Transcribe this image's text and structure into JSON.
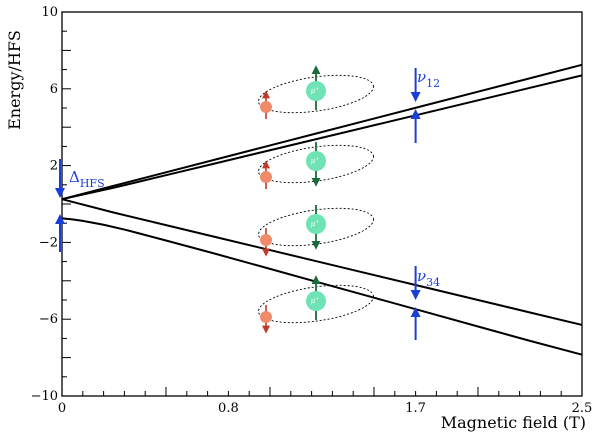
{
  "chart_data": {
    "type": "line",
    "xlabel": "Magnetic field (T)",
    "ylabel": "Energy/HFS",
    "xlim": [
      0,
      2.5
    ],
    "ylim": [
      -10,
      10
    ],
    "x_ticks": [
      {
        "value": 0,
        "label": "0"
      },
      {
        "value": 0.8,
        "label": "0.8"
      },
      {
        "value": 1.7,
        "label": "1.7"
      },
      {
        "value": 2.5,
        "label": "2.5"
      }
    ],
    "y_ticks": [
      {
        "value": -10,
        "label": "−10"
      },
      {
        "value": -6,
        "label": "−6"
      },
      {
        "value": -2,
        "label": "−2"
      },
      {
        "value": 2,
        "label": "2"
      },
      {
        "value": 6,
        "label": "6"
      },
      {
        "value": 10,
        "label": "10"
      }
    ],
    "series": [
      {
        "x": [
          0,
          0.25,
          0.5,
          0.75,
          1.0,
          1.25,
          1.5,
          1.75,
          2.0,
          2.25,
          2.5
        ],
        "y": [
          0.25,
          0.95,
          1.65,
          2.35,
          3.05,
          3.75,
          4.45,
          5.15,
          5.85,
          6.55,
          7.25
        ],
        "color": "#000000"
      },
      {
        "x": [
          0,
          0.25,
          0.5,
          0.75,
          1.0,
          1.25,
          1.5,
          1.75,
          2.0,
          2.25,
          2.5
        ],
        "y": [
          0.25,
          0.85,
          1.5,
          2.15,
          2.8,
          3.45,
          4.1,
          4.75,
          5.4,
          6.05,
          6.7
        ],
        "color": "#000000"
      },
      {
        "x": [
          0,
          0.25,
          0.5,
          0.75,
          1.0,
          1.25,
          1.5,
          1.75,
          2.0,
          2.25,
          2.5
        ],
        "y": [
          0.25,
          -0.45,
          -1.1,
          -1.75,
          -2.4,
          -3.05,
          -3.7,
          -4.35,
          -5.0,
          -5.65,
          -6.3
        ],
        "color": "#000000"
      },
      {
        "x": [
          0,
          0.05,
          0.1,
          0.2,
          0.3,
          0.5,
          0.75,
          1.0,
          1.25,
          1.5,
          1.75,
          2.0,
          2.25,
          2.5
        ],
        "y": [
          -0.75,
          -0.8,
          -0.88,
          -1.08,
          -1.33,
          -1.9,
          -2.63,
          -3.38,
          -4.13,
          -4.88,
          -5.63,
          -6.38,
          -7.13,
          -7.85
        ],
        "color": "#000000"
      }
    ],
    "annotations": [
      {
        "text": "Δ",
        "sub": "HFS",
        "x": 0.0,
        "y": 1.5
      },
      {
        "text": "ν",
        "sub": "12",
        "x": 1.7,
        "y": 5.5
      },
      {
        "text": "ν",
        "sub": "34",
        "x": 1.7,
        "y": -4.5
      }
    ],
    "particle_label": "μ",
    "particle_label_sup": "+",
    "colors": {
      "curve": "#000000",
      "annotation": "#1a3fd6",
      "electron": "#f08a6b",
      "electron_spin": "#c0392b",
      "muon": "#6fe3b5",
      "muon_spin": "#1b6b3a"
    }
  }
}
